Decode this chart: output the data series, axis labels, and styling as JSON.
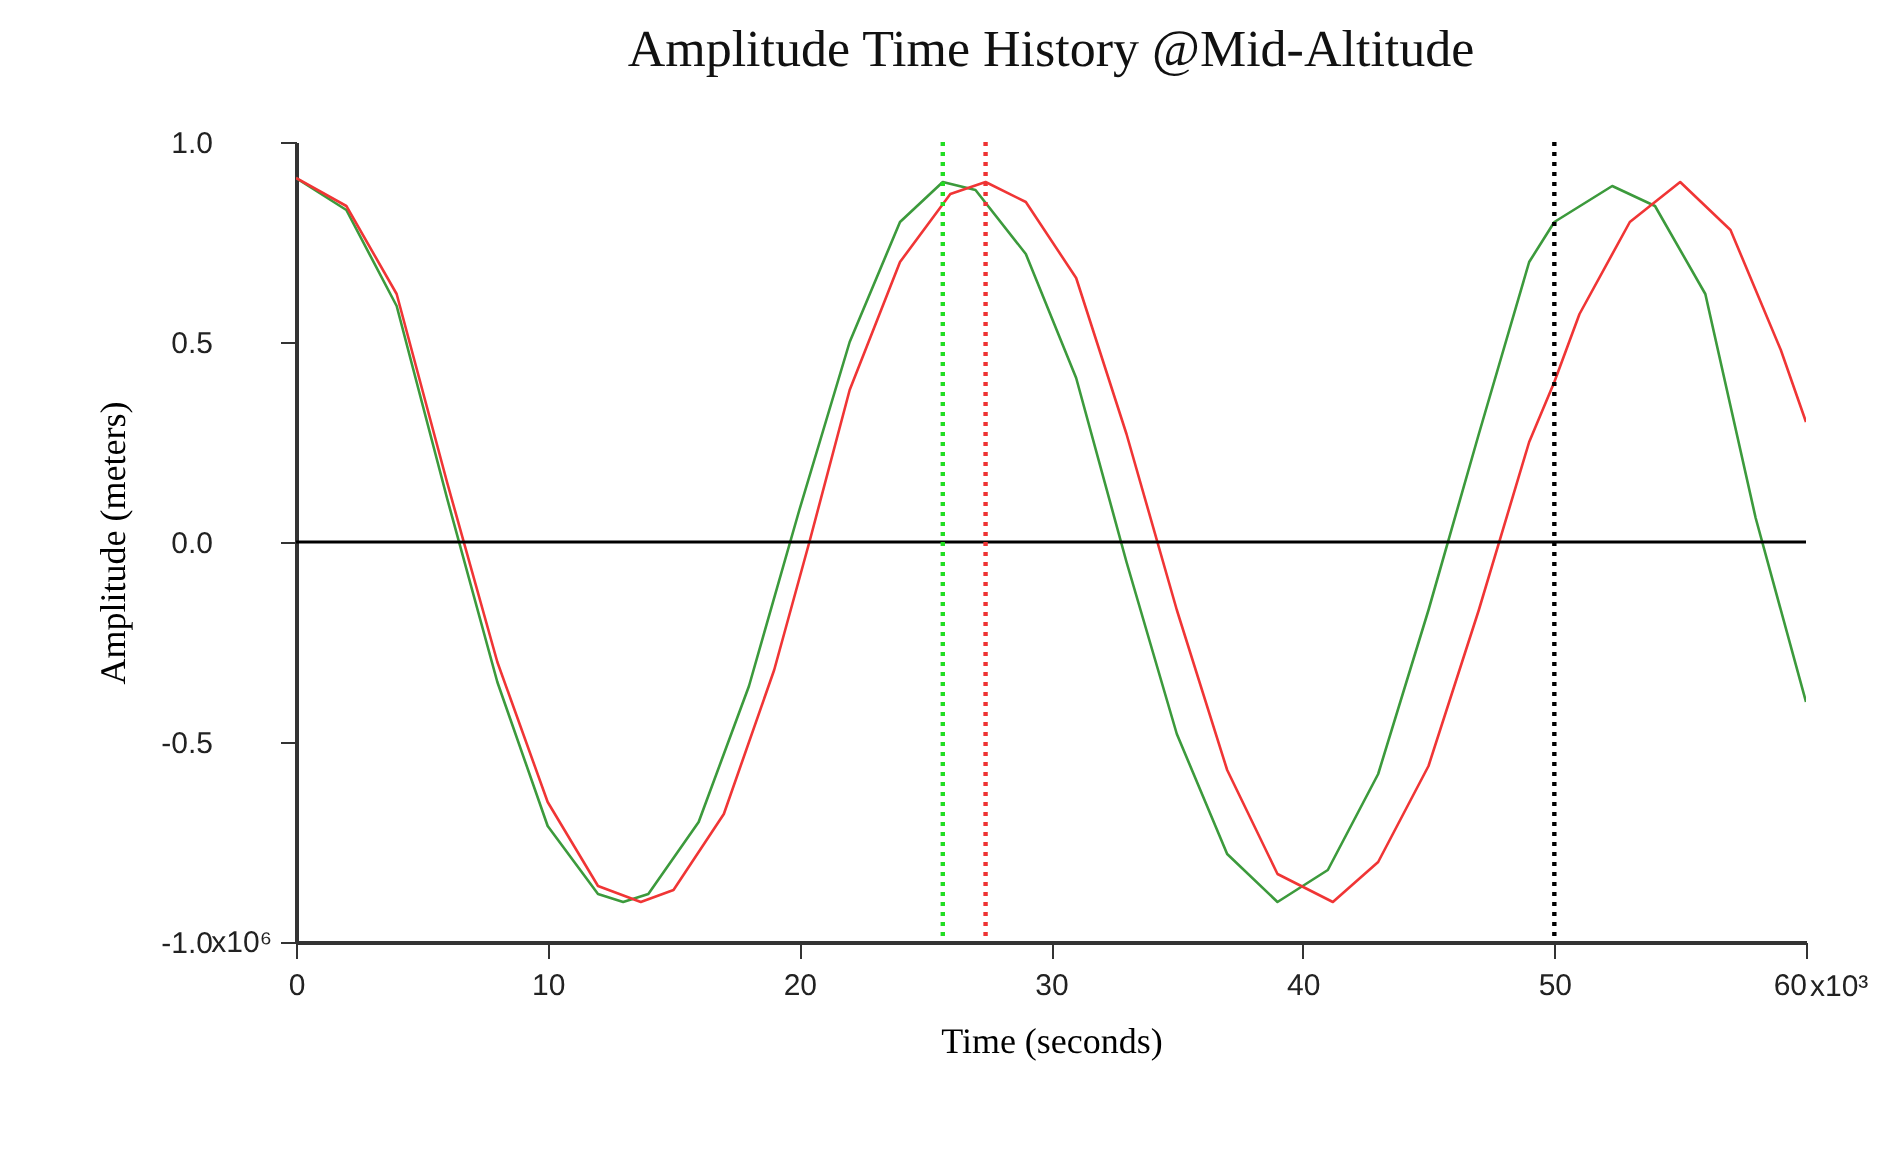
{
  "chart_data": {
    "type": "line",
    "title": "Amplitude Time History @Mid-Altitude",
    "xlabel": "Time (seconds)",
    "ylabel": "Amplitude (meters)",
    "xlim": [
      0,
      60
    ],
    "ylim": [
      -1.0,
      1.0
    ],
    "xticks": [
      0,
      10,
      20,
      30,
      40,
      50,
      60
    ],
    "yticks": [
      {
        "value": -1.0,
        "label": "-1.0"
      },
      -0.5,
      {
        "value": 0,
        "label": "0.0"
      },
      0.5,
      {
        "value": 1.0,
        "label": "1.0"
      }
    ],
    "annotations": [
      "x10³",
      "x10⁶"
    ],
    "grid": false,
    "legend": false,
    "marker": "none",
    "line_style": "solid",
    "series": [
      {
        "color": "#3c9a3c",
        "x": [
          0,
          2,
          4,
          6,
          8,
          10,
          12,
          13,
          14,
          16,
          18,
          20,
          22,
          24,
          25.7,
          27,
          29,
          31,
          33,
          35,
          37,
          39,
          41,
          43,
          45,
          47,
          49,
          50,
          52.3,
          54,
          56,
          58,
          60
        ],
        "values": [
          0.91,
          0.83,
          0.59,
          0.11,
          -0.35,
          -0.71,
          -0.88,
          -0.9,
          -0.88,
          -0.7,
          -0.36,
          0.08,
          0.5,
          0.8,
          0.9,
          0.88,
          0.72,
          0.41,
          -0.05,
          -0.48,
          -0.78,
          -0.9,
          -0.82,
          -0.58,
          -0.17,
          0.27,
          0.7,
          0.8,
          0.89,
          0.84,
          0.62,
          0.06,
          -0.4
        ]
      },
      {
        "color": "#f03535",
        "x": [
          0,
          2,
          4,
          6,
          8,
          10,
          12,
          13.7,
          15,
          17,
          19,
          20.4,
          22,
          24,
          26,
          27.4,
          29,
          31,
          33,
          35,
          37,
          39,
          41.2,
          43,
          45,
          47,
          49,
          50,
          51,
          53,
          55,
          57,
          59,
          60
        ],
        "values": [
          0.91,
          0.84,
          0.62,
          0.15,
          -0.3,
          -0.65,
          -0.86,
          -0.9,
          -0.87,
          -0.68,
          -0.32,
          0.0,
          0.38,
          0.7,
          0.87,
          0.9,
          0.85,
          0.66,
          0.27,
          -0.17,
          -0.57,
          -0.83,
          -0.9,
          -0.8,
          -0.56,
          -0.17,
          0.25,
          0.4,
          0.57,
          0.8,
          0.9,
          0.78,
          0.48,
          0.3
        ]
      }
    ],
    "ref_lines": [
      {
        "axis": "y",
        "value": 0,
        "color": "#000000",
        "line_style": "solid"
      },
      {
        "axis": "x",
        "value": 25.7,
        "color": "#22dd22",
        "line_style": "dotted"
      },
      {
        "axis": "x",
        "value": 27.4,
        "color": "#ee3333",
        "line_style": "dotted"
      },
      {
        "axis": "x",
        "value": 50,
        "color": "#000000",
        "line_style": "dotted"
      }
    ]
  }
}
